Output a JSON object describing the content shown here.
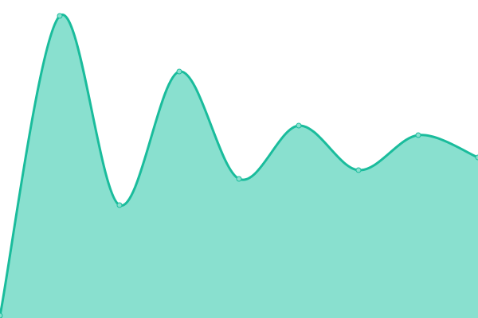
{
  "chart_data": {
    "type": "area",
    "x": [
      0,
      1,
      2,
      3,
      4,
      5,
      6,
      7,
      8
    ],
    "values": [
      3,
      380,
      142,
      310,
      175,
      242,
      186,
      230,
      202
    ],
    "ylim": [
      0,
      400
    ],
    "xlim": [
      0,
      8
    ],
    "smooth": true,
    "grid": false,
    "axes_visible": false,
    "line_color": "#1abc9c",
    "fill_color": "#89e0cf",
    "marker_fill": "#89e0cf"
  }
}
